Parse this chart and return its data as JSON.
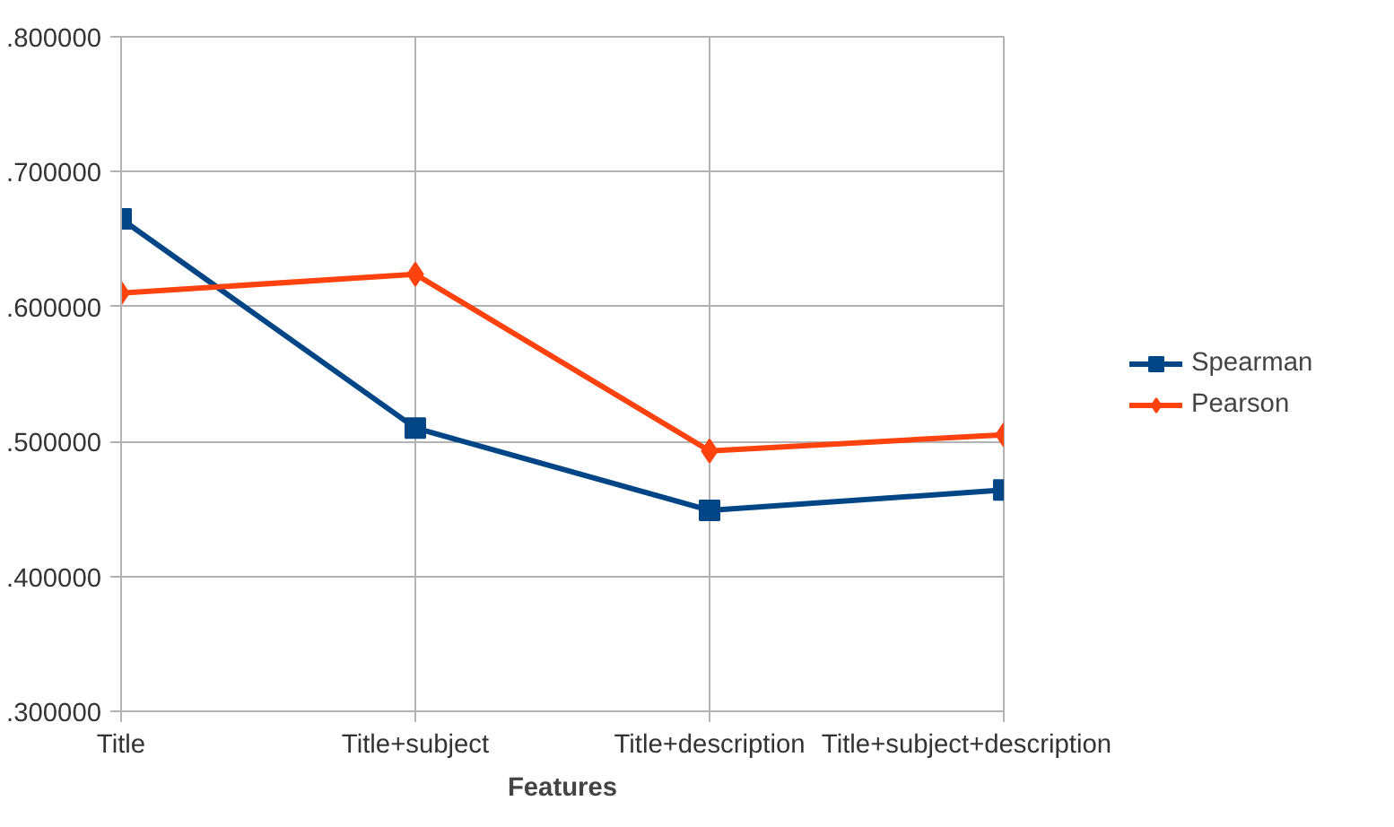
{
  "chart_data": {
    "type": "line",
    "xlabel": "Features",
    "categories": [
      "Title",
      "Title+subject",
      "Title+description",
      "Title+subject+description"
    ],
    "series": [
      {
        "name": "Spearman",
        "color": "#004586",
        "marker": "square",
        "values": [
          0.665,
          0.51,
          0.449,
          0.464
        ]
      },
      {
        "name": "Pearson",
        "color": "#ff420e",
        "marker": "diamond",
        "values": [
          0.61,
          0.624,
          0.493,
          0.505
        ]
      }
    ],
    "ylim": [
      0.3,
      0.8
    ],
    "yticks": [
      {
        "value": 0.3,
        "label": ".300000"
      },
      {
        "value": 0.4,
        "label": ".400000"
      },
      {
        "value": 0.5,
        "label": ".500000"
      },
      {
        "value": 0.6,
        "label": ".600000"
      },
      {
        "value": 0.7,
        "label": ".700000"
      },
      {
        "value": 0.8,
        "label": ".800000"
      }
    ],
    "grid": true,
    "legend": "right",
    "line_style": "solid"
  }
}
